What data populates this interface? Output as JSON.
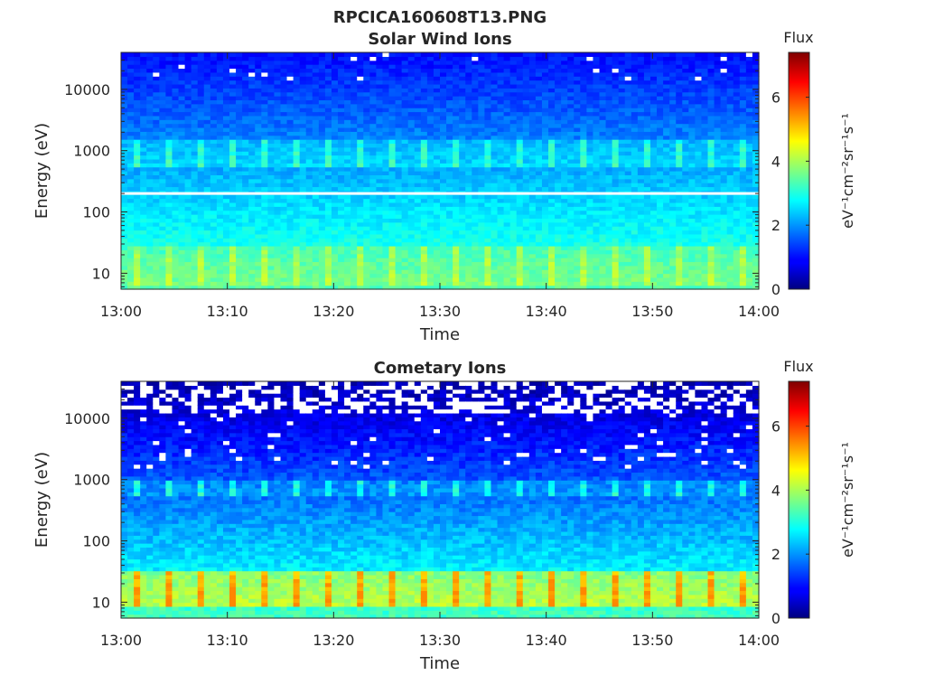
{
  "figure": {
    "title": "RPCICA160608T13.PNG"
  },
  "chart_data": [
    {
      "type": "heatmap",
      "title": "Solar Wind Ions",
      "xlabel": "Time",
      "ylabel": "Energy (eV)",
      "x_ticks": [
        "13:00",
        "13:10",
        "13:20",
        "13:30",
        "13:40",
        "13:50",
        "14:00"
      ],
      "xlim": [
        "13:00",
        "14:00"
      ],
      "y_scale": "log",
      "y_ticks": [
        10,
        100,
        1000,
        10000
      ],
      "y_tick_labels": [
        "10",
        "100",
        "1000",
        "10000"
      ],
      "ylim": [
        5.5,
        40000
      ],
      "colorbar": {
        "label": "Flux",
        "unit_label": "eV⁻¹cm⁻²sr⁻¹s⁻¹",
        "range": [
          0,
          7.4
        ],
        "ticks": [
          0,
          2,
          4,
          6
        ],
        "tick_labels": [
          "0",
          "2",
          "4",
          "6"
        ],
        "colormap": "jet"
      },
      "features": {
        "sweep_count": 20,
        "pulse_energy_band_eV": [
          550,
          1600
        ],
        "low_energy_band_eV": [
          6,
          30
        ],
        "background_level_high_energy": 1.0,
        "peak_level": 4.3,
        "gap_energy_eV": 200
      }
    },
    {
      "type": "heatmap",
      "title": "Cometary Ions",
      "xlabel": "Time",
      "ylabel": "Energy (eV)",
      "x_ticks": [
        "13:00",
        "13:10",
        "13:20",
        "13:30",
        "13:40",
        "13:50",
        "14:00"
      ],
      "xlim": [
        "13:00",
        "14:00"
      ],
      "y_scale": "log",
      "y_ticks": [
        10,
        100,
        1000,
        10000
      ],
      "y_tick_labels": [
        "10",
        "100",
        "1000",
        "10000"
      ],
      "ylim": [
        5.5,
        40000
      ],
      "colorbar": {
        "label": "Flux",
        "unit_label": "eV⁻¹cm⁻²sr⁻¹s⁻¹",
        "range": [
          0,
          7.4
        ],
        "ticks": [
          0,
          2,
          4,
          6
        ],
        "tick_labels": [
          "0",
          "2",
          "4",
          "6"
        ],
        "colormap": "jet"
      },
      "features": {
        "sweep_count": 20,
        "pulse_energy_band_eV": [
          550,
          1000
        ],
        "low_energy_band_eV": [
          8,
          35
        ],
        "background_level_high_energy": 0.6,
        "peak_level": 5.5,
        "sparse_above_eV": 12000
      }
    }
  ]
}
